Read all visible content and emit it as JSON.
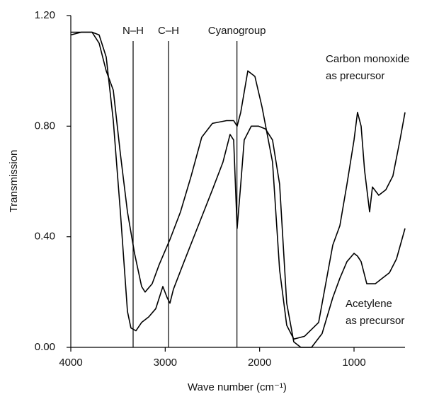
{
  "chart_data": {
    "type": "line",
    "x_label": "Wave number (cm⁻¹)",
    "y_label": "Transmission",
    "xlim": [
      4000,
      460
    ],
    "ylim": [
      0,
      1.2
    ],
    "xticks": [
      4000,
      3000,
      2000,
      1000
    ],
    "yticks": [
      {
        "value": 0,
        "label": "0.00"
      },
      {
        "value": 0.4,
        "label": "0.40"
      },
      {
        "value": 0.8,
        "label": "0.80"
      },
      {
        "value": 1.2,
        "label": "1.20"
      }
    ],
    "bands": [
      {
        "label": "N–H",
        "x": 3340
      },
      {
        "label": "C–H",
        "x": 2965
      },
      {
        "label": "Cyanogroup",
        "x": 2240
      }
    ],
    "series": [
      {
        "label_lines": [
          "Carbon monoxide",
          "as precursor"
        ],
        "color": "#000000",
        "x": [
          4000,
          3888,
          3775,
          3700,
          3625,
          3550,
          3475,
          3400,
          3325,
          3250,
          3213,
          3138,
          3063,
          2950,
          2838,
          2725,
          2613,
          2500,
          2350,
          2275,
          2238,
          2200,
          2125,
          2050,
          1975,
          1863,
          1788,
          1713,
          1638,
          1525,
          1375,
          1300,
          1225,
          1150,
          1075,
          1000,
          963,
          925,
          888,
          835,
          805,
          738,
          663,
          588,
          513,
          460
        ],
        "values": [
          1.14,
          1.14,
          1.14,
          1.1,
          1.0,
          0.93,
          0.7,
          0.49,
          0.34,
          0.22,
          0.2,
          0.23,
          0.3,
          0.39,
          0.49,
          0.62,
          0.76,
          0.81,
          0.82,
          0.82,
          0.8,
          0.85,
          1.0,
          0.98,
          0.87,
          0.67,
          0.28,
          0.08,
          0.03,
          0.04,
          0.09,
          0.23,
          0.37,
          0.44,
          0.59,
          0.75,
          0.85,
          0.8,
          0.64,
          0.49,
          0.58,
          0.55,
          0.57,
          0.62,
          0.75,
          0.85
        ]
      },
      {
        "label_lines": [
          "Acetylene",
          "as precursor"
        ],
        "color": "#000000",
        "x": [
          4000,
          3888,
          3775,
          3700,
          3625,
          3550,
          3475,
          3400,
          3363,
          3310,
          3250,
          3175,
          3100,
          3025,
          2980,
          2950,
          2913,
          2800,
          2650,
          2500,
          2388,
          2313,
          2275,
          2238,
          2200,
          2163,
          2088,
          2013,
          1938,
          1863,
          1788,
          1713,
          1638,
          1563,
          1450,
          1338,
          1225,
          1150,
          1075,
          1000,
          963,
          925,
          865,
          775,
          700,
          625,
          550,
          460
        ],
        "values": [
          1.13,
          1.14,
          1.14,
          1.13,
          1.05,
          0.82,
          0.49,
          0.13,
          0.07,
          0.06,
          0.09,
          0.11,
          0.14,
          0.22,
          0.18,
          0.16,
          0.21,
          0.31,
          0.44,
          0.57,
          0.67,
          0.77,
          0.75,
          0.43,
          0.59,
          0.75,
          0.8,
          0.8,
          0.79,
          0.75,
          0.59,
          0.16,
          0.02,
          0,
          0,
          0.05,
          0.18,
          0.25,
          0.31,
          0.34,
          0.33,
          0.31,
          0.23,
          0.23,
          0.25,
          0.27,
          0.32,
          0.43
        ]
      }
    ]
  }
}
